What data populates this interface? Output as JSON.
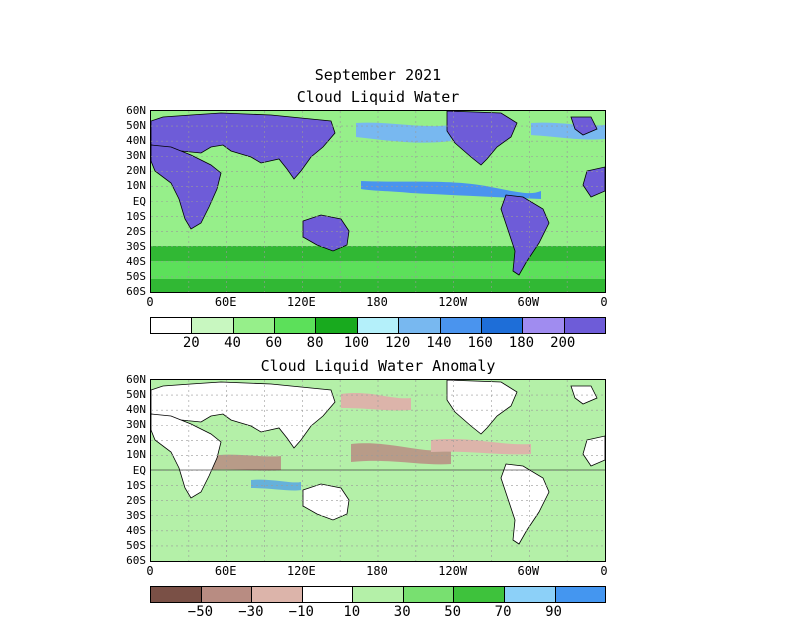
{
  "top": {
    "month": "September 2021",
    "title": "Cloud Liquid Water",
    "lat_labels": [
      "60N",
      "50N",
      "40N",
      "30N",
      "20N",
      "10N",
      "EQ",
      "10S",
      "20S",
      "30S",
      "40S",
      "50S",
      "60S"
    ],
    "lon_labels": [
      "0",
      "60E",
      "120E",
      "180",
      "120W",
      "60W",
      "0"
    ],
    "colorbar": {
      "colors": [
        "#ffffff",
        "#c8f7c0",
        "#96ef8a",
        "#5ce05a",
        "#18aa1e",
        "#b4f0fa",
        "#78b8f0",
        "#4a94ee",
        "#1e6ed8",
        "#a08cf0",
        "#6e5cd8"
      ],
      "labels": [
        "20",
        "40",
        "60",
        "80",
        "100",
        "120",
        "140",
        "160",
        "180",
        "200"
      ]
    }
  },
  "bottom": {
    "title": "Cloud Liquid Water Anomaly",
    "lat_labels": [
      "60N",
      "50N",
      "40N",
      "30N",
      "20N",
      "10N",
      "EQ",
      "10S",
      "20S",
      "30S",
      "40S",
      "50S",
      "60S"
    ],
    "lon_labels": [
      "0",
      "60E",
      "120E",
      "180",
      "120W",
      "60W",
      "0"
    ],
    "colorbar": {
      "colors": [
        "#7a5046",
        "#b88c82",
        "#dcb4aa",
        "#ffffff",
        "#b4f0a8",
        "#78e070",
        "#3ec23c",
        "#8cd0f8",
        "#4496f0"
      ],
      "labels": [
        "−50",
        "−30",
        "−10",
        "10",
        "30",
        "50",
        "70",
        "90"
      ]
    }
  },
  "colors": {
    "land_top": "#6e5cd8",
    "ocean_base_top": "#96ef8a",
    "anomaly_base": "#b4f0a8",
    "grid": "#999999"
  }
}
